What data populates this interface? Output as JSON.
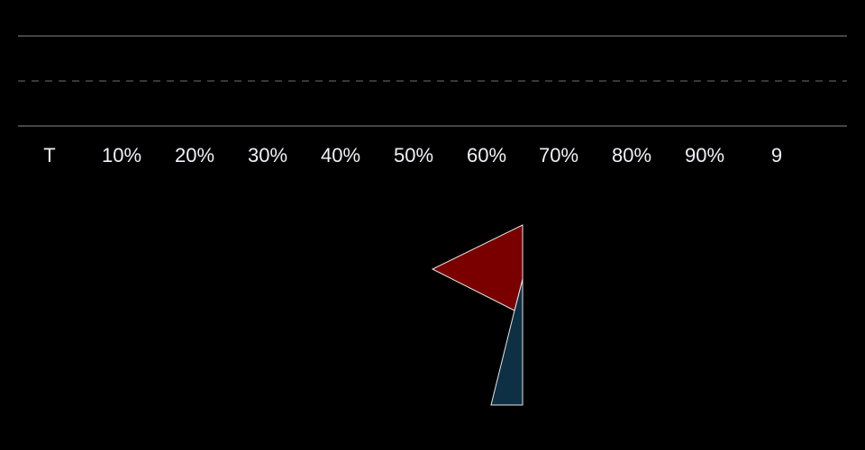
{
  "ruler": {
    "labels": [
      "T",
      "10%",
      "20%",
      "30%",
      "40%",
      "50%",
      "60%",
      "70%",
      "80%",
      "90%",
      "9"
    ]
  },
  "colors": {
    "background": "#000000",
    "rule_line": "#5a5a5a",
    "dashed_line": "#4a4a4a",
    "label_text": "#f0f0f8",
    "flag_top": "#7a0000",
    "flag_bottom": "#0d3045",
    "outline": "#e6e6e6"
  },
  "icons": {
    "flag": "flag-icon"
  }
}
